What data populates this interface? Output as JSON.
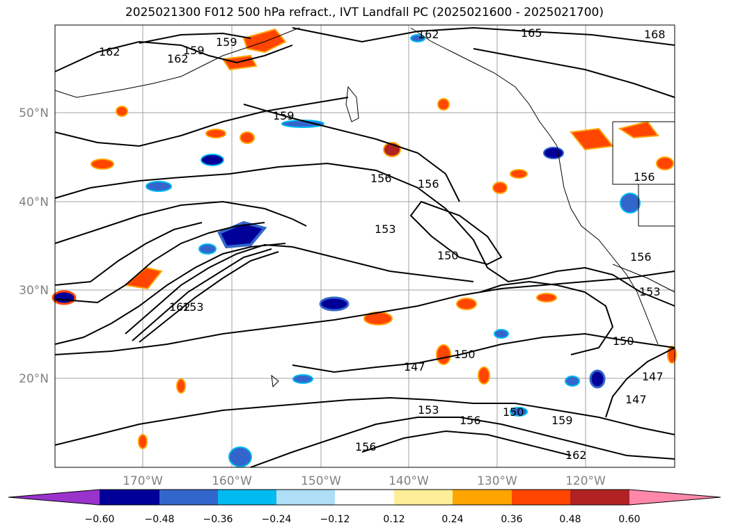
{
  "title": "2025021300 F012 500 hPa refract., IVT Landfall PC (2025021600 - 2025021700)",
  "map": {
    "lon_ticks": [
      "170°W",
      "160°W",
      "150°W",
      "140°W",
      "130°W",
      "120°W"
    ],
    "lat_ticks": [
      "50°N",
      "40°N",
      "30°N",
      "20°N"
    ],
    "gridlines": true
  },
  "contour_labels": [
    "162",
    "159",
    "162",
    "159",
    "162",
    "165",
    "168",
    "159",
    "156",
    "156",
    "153",
    "150",
    "156",
    "156",
    "153",
    "162",
    "153",
    "150",
    "147",
    "150",
    "147",
    "147",
    "153",
    "156",
    "150",
    "159",
    "156",
    "162"
  ],
  "colorbar": {
    "ticks": [
      "−0.60",
      "−0.48",
      "−0.36",
      "−0.24",
      "−0.12",
      "0.12",
      "0.24",
      "0.36",
      "0.48",
      "0.60"
    ],
    "colors": [
      "#9933cc",
      "#000099",
      "#3366cc",
      "#00bbf0",
      "#aedff7",
      "#ffffff",
      "#ffee99",
      "#ffa500",
      "#ff4500",
      "#b22222",
      "#ff88aa"
    ]
  }
}
